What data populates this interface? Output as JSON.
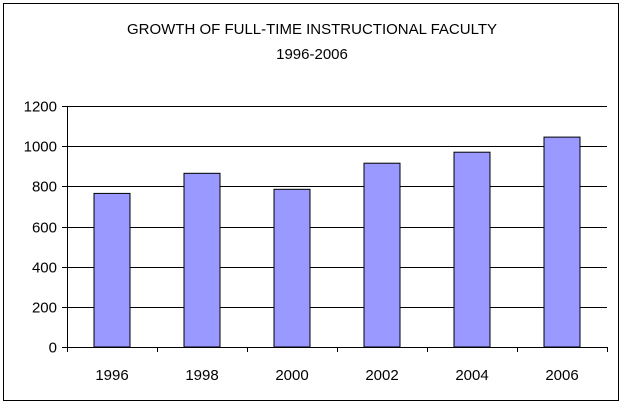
{
  "chart_data": {
    "type": "bar",
    "title": "GROWTH OF FULL-TIME INSTRUCTIONAL FACULTY",
    "subtitle": "1996-2006",
    "categories": [
      "1996",
      "1998",
      "2000",
      "2002",
      "2004",
      "2006"
    ],
    "values": [
      765,
      865,
      785,
      915,
      970,
      1045
    ],
    "yticks": [
      0,
      200,
      400,
      600,
      800,
      1000,
      1200
    ],
    "ylim": [
      0,
      1200
    ],
    "grid": true,
    "legend": "none",
    "colors": {
      "bar_fill": "#9999ff",
      "bar_stroke": "#000000",
      "gridline": "#000000"
    }
  }
}
